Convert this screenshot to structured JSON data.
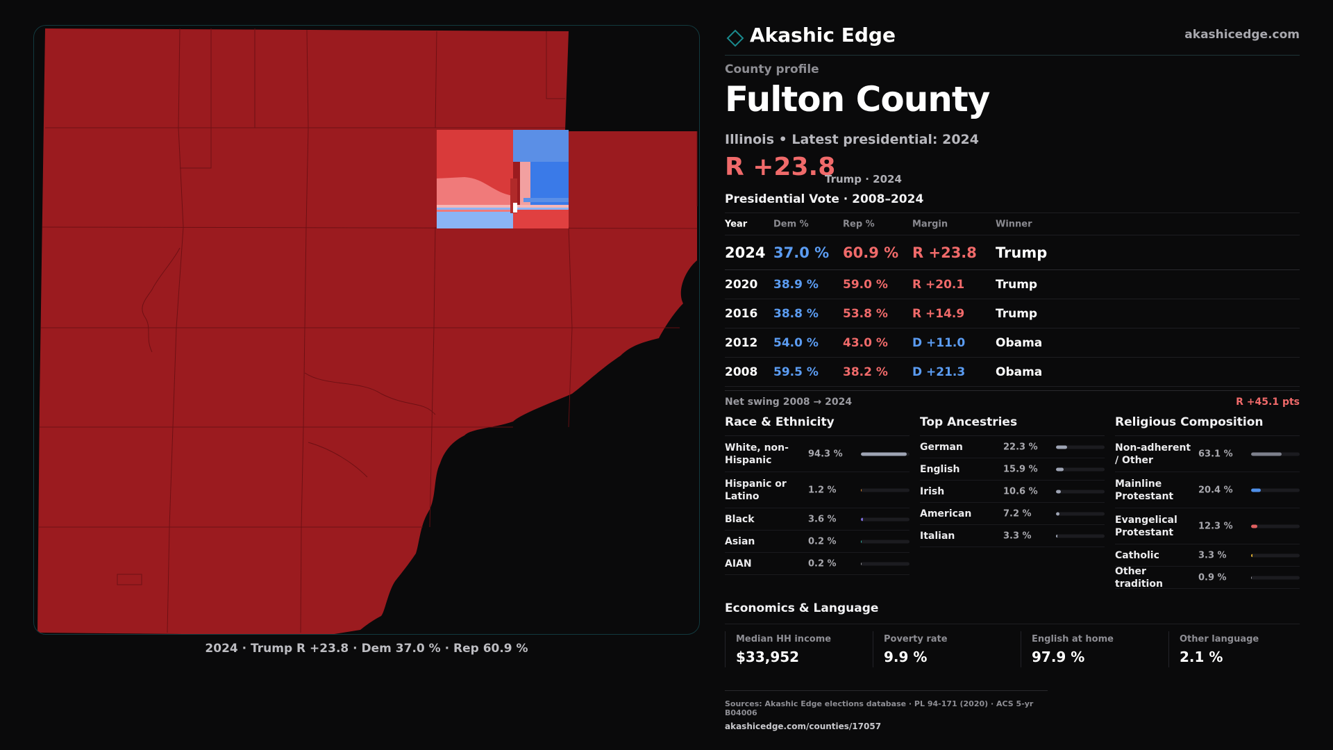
{
  "map": {
    "caption": "2024 · Trump R +23.8 · Dem 37.0 % · Rep 60.9 %"
  },
  "brand": {
    "name": "Akashic Edge",
    "url": "akashicedge.com",
    "logo_icon": "diamond-outline-icon"
  },
  "profile": {
    "label": "County profile",
    "county": "Fulton County",
    "subtitle": "Illinois • Latest presidential: 2024",
    "margin": "R +23.8",
    "margin_note": "Trump · 2024"
  },
  "vote": {
    "title": "Presidential Vote · 2008–2024",
    "headers": {
      "year": "Year",
      "dem": "Dem %",
      "rep": "Rep %",
      "margin": "Margin",
      "winner": "Winner"
    },
    "rows": [
      {
        "year": "2024",
        "dem": "37.0 %",
        "rep": "60.9 %",
        "margin": "R +23.8",
        "winner": "Trump"
      },
      {
        "year": "2020",
        "dem": "38.9 %",
        "rep": "59.0 %",
        "margin": "R +20.1",
        "winner": "Trump"
      },
      {
        "year": "2016",
        "dem": "38.8 %",
        "rep": "53.8 %",
        "margin": "R +14.9",
        "winner": "Trump"
      },
      {
        "year": "2012",
        "dem": "54.0 %",
        "rep": "43.0 %",
        "margin": "D +11.0",
        "winner": "Obama"
      },
      {
        "year": "2008",
        "dem": "59.5 %",
        "rep": "38.2 %",
        "margin": "D +21.3",
        "winner": "Obama"
      }
    ],
    "swing_label": "Net swing 2008 → 2024",
    "swing_value": "R +45.1 pts"
  },
  "race": {
    "title": "Race & Ethnicity",
    "items": [
      {
        "label": "White, non-Hispanic",
        "value": "94.3 %",
        "pct": 94.3
      },
      {
        "label": "Hispanic or Latino",
        "value": "1.2 %",
        "pct": 1.2
      },
      {
        "label": "Black",
        "value": "3.6 %",
        "pct": 3.6
      },
      {
        "label": "Asian",
        "value": "0.2 %",
        "pct": 0.2
      },
      {
        "label": "AIAN",
        "value": "0.2 %",
        "pct": 0.2
      }
    ],
    "colors": [
      "#9ea4b4",
      "#e0892c",
      "#7a6bd6",
      "#2fb8a6",
      "#9a9aa0"
    ]
  },
  "ancestry": {
    "title": "Top Ancestries",
    "items": [
      {
        "label": "German",
        "value": "22.3 %",
        "pct": 22.3
      },
      {
        "label": "English",
        "value": "15.9 %",
        "pct": 15.9
      },
      {
        "label": "Irish",
        "value": "10.6 %",
        "pct": 10.6
      },
      {
        "label": "American",
        "value": "7.2 %",
        "pct": 7.2
      },
      {
        "label": "Italian",
        "value": "3.3 %",
        "pct": 3.3
      }
    ],
    "colors": [
      "#9ea4b4",
      "#9ea4b4",
      "#9ea4b4",
      "#9ea4b4",
      "#9ea4b4"
    ]
  },
  "religion": {
    "title": "Religious Composition",
    "items": [
      {
        "label": "Non-adherent / Other",
        "value": "63.1 %",
        "pct": 63.1
      },
      {
        "label": "Mainline Protestant",
        "value": "20.4 %",
        "pct": 20.4
      },
      {
        "label": "Evangelical Protestant",
        "value": "12.3 %",
        "pct": 12.3
      },
      {
        "label": "Catholic",
        "value": "3.3 %",
        "pct": 3.3
      },
      {
        "label": "Other tradition",
        "value": "0.9 %",
        "pct": 0.9
      }
    ],
    "colors": [
      "#7d808c",
      "#4f8fe8",
      "#e06060",
      "#e0b030",
      "#9a9aa0"
    ]
  },
  "economics": {
    "title": "Economics & Language",
    "items": [
      {
        "label": "Median HH income",
        "value": "$33,952"
      },
      {
        "label": "Poverty rate",
        "value": "9.9 %"
      },
      {
        "label": "English at home",
        "value": "97.9 %"
      },
      {
        "label": "Other language",
        "value": "2.1 %"
      }
    ]
  },
  "sources": {
    "text": "Sources: Akashic Edge elections database · PL 94-171 (2020) · ACS 5-yr B04006",
    "link": "akashicedge.com/counties/17057"
  }
}
